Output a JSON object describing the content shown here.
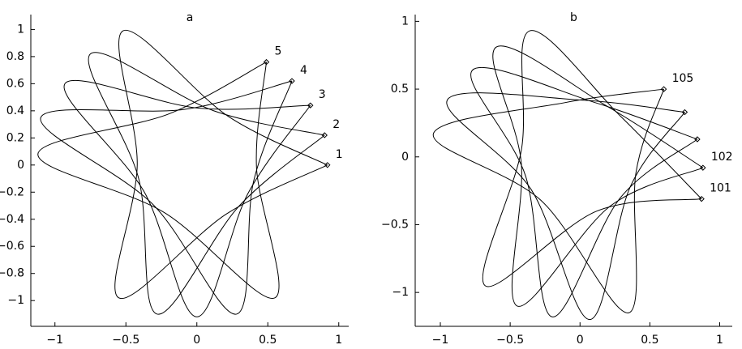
{
  "chart_data": [
    {
      "type": "line",
      "title": "a",
      "xlim": [
        -1.17,
        1.07
      ],
      "ylim": [
        -1.19,
        1.11
      ],
      "xticks": [
        {
          "value": -1,
          "label": "−1"
        },
        {
          "value": -0.5,
          "label": "−0.5"
        },
        0,
        0.5,
        1
      ],
      "yticks": [
        {
          "value": -1,
          "label": "−1"
        },
        {
          "value": -0.8,
          "label": "−0.8"
        },
        {
          "value": -0.6,
          "label": "−0.6"
        },
        {
          "value": -0.4,
          "label": "−0.4"
        },
        {
          "value": -0.2,
          "label": "−0.2"
        },
        0,
        0.2,
        0.4,
        0.6,
        0.8,
        1
      ],
      "color": "#000000",
      "series": [
        {
          "label": "1",
          "x": [
            0.92,
            0.22,
            -0.52,
            -0.42,
            -0.55,
            0.21,
            0.92
          ],
          "y": [
            0,
            0.36,
            0.99,
            0,
            -0.98,
            -0.36,
            0
          ]
        },
        {
          "label": "2",
          "x": [
            0.9,
            0.12,
            -0.75,
            -0.41,
            -0.28,
            0.3,
            0.9
          ],
          "y": [
            0.22,
            0.4,
            0.82,
            -0.1,
            -1.1,
            -0.3,
            0.22
          ]
        },
        {
          "label": "3",
          "x": [
            0.8,
            0.01,
            -0.93,
            -0.37,
            0,
            0.36,
            0.8
          ],
          "y": [
            0.44,
            0.42,
            0.6,
            -0.2,
            -1.12,
            -0.21,
            0.44
          ]
        },
        {
          "label": "4",
          "x": [
            0.67,
            -0.09,
            -1.1,
            -0.31,
            0.28,
            0.4,
            0.67
          ],
          "y": [
            0.62,
            0.41,
            0.35,
            -0.29,
            -1.1,
            -0.12,
            0.62
          ]
        },
        {
          "label": "5",
          "x": [
            0.49,
            -0.19,
            -1.12,
            -0.23,
            0.55,
            0.42,
            0.49
          ],
          "y": [
            0.76,
            0.38,
            0.08,
            -0.35,
            -0.98,
            -0.01,
            0.76
          ]
        }
      ]
    },
    {
      "type": "line",
      "title": "b",
      "xlim": [
        -1.18,
        1.09
      ],
      "ylim": [
        -1.25,
        1.05
      ],
      "xticks": [
        {
          "value": -1,
          "label": "−1"
        },
        {
          "value": -0.5,
          "label": "−0.5"
        },
        0,
        0.5,
        1
      ],
      "yticks": [
        {
          "value": -1,
          "label": "−1"
        },
        {
          "value": -0.5,
          "label": "−0.5"
        },
        0,
        0.5,
        1
      ],
      "color": "#000000",
      "series": [
        {
          "label": "101",
          "x": [
            0.87,
            0.29,
            -0.36,
            -0.42,
            -0.68,
            0.12,
            0.87
          ],
          "y": [
            -0.31,
            0.3,
            0.93,
            0.05,
            -0.95,
            -0.4,
            -0.31
          ]
        },
        {
          "label": "102",
          "x": [
            0.88,
            0.2,
            -0.6,
            -0.42,
            -0.45,
            0.22,
            0.88
          ],
          "y": [
            -0.08,
            0.37,
            0.81,
            -0.05,
            -1.1,
            -0.36,
            -0.08
          ]
        },
        {
          "x": [
            0.84,
            0.11,
            -0.77,
            -0.39,
            -0.2,
            0.29,
            0.84
          ],
          "y": [
            0.13,
            0.4,
            0.64,
            -0.14,
            -1.18,
            -0.3,
            0.13
          ]
        },
        {
          "x": [
            0.75,
            0,
            -0.95,
            -0.35,
            0.07,
            0.36,
            0.75
          ],
          "y": [
            0.33,
            0.42,
            0.42,
            -0.24,
            -1.2,
            -0.22,
            0.33
          ]
        },
        {
          "label": "105",
          "x": [
            0.6,
            -0.11,
            -1.05,
            -0.28,
            0.35,
            0.4,
            0.6
          ],
          "y": [
            0.5,
            0.4,
            0.17,
            -0.32,
            -1.15,
            -0.12,
            0.5
          ]
        }
      ]
    }
  ]
}
